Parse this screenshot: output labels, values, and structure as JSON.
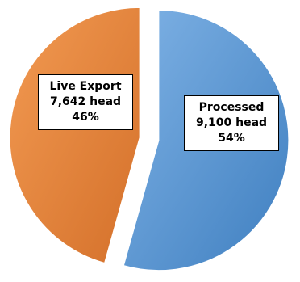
{
  "chart_data": {
    "type": "pie",
    "title": "",
    "categories": [
      "Live Export",
      "Processed"
    ],
    "values": [
      7642,
      9100
    ],
    "unit": "head",
    "percents": [
      "46%",
      "54%"
    ],
    "exploded": true,
    "colors": [
      "#E8823A",
      "#5B9BD5"
    ],
    "labels": [
      {
        "name": "Live Export",
        "value_text": "7,642  head",
        "percent_text": "46%"
      },
      {
        "name": "Processed",
        "value_text": "9,100  head",
        "percent_text": "54%"
      }
    ]
  }
}
